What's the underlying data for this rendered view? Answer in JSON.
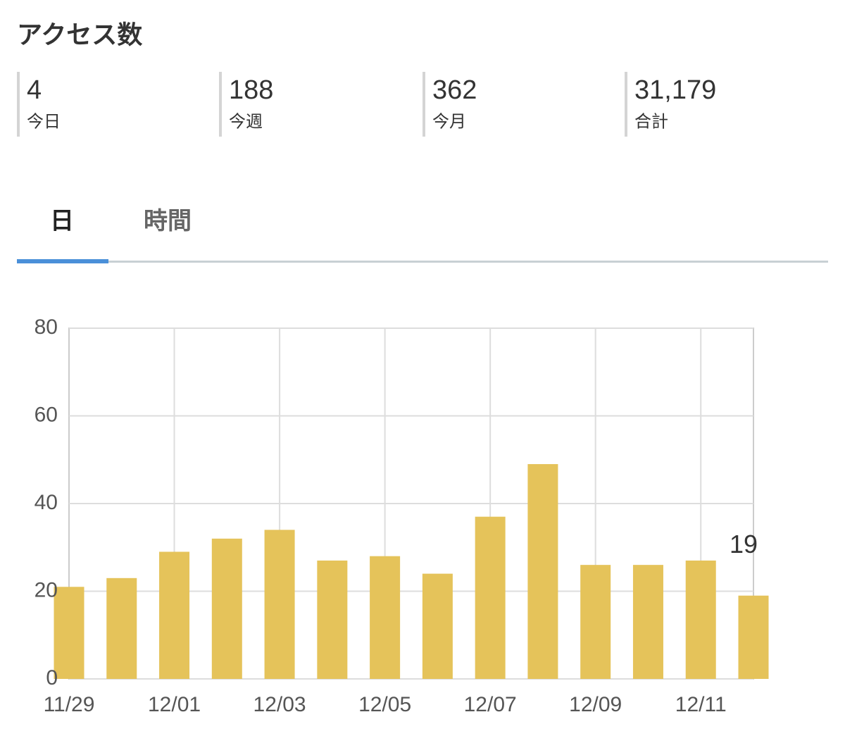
{
  "header": {
    "title": "アクセス数"
  },
  "stats": [
    {
      "value": "4",
      "label": "今日"
    },
    {
      "value": "188",
      "label": "今週"
    },
    {
      "value": "362",
      "label": "今月"
    },
    {
      "value": "31,179",
      "label": "合計"
    }
  ],
  "tabs": [
    "日",
    "時間"
  ],
  "chart_data": {
    "type": "bar",
    "categories": [
      "11/29",
      null,
      "12/01",
      null,
      "12/03",
      null,
      "12/05",
      null,
      "12/07",
      null,
      "12/09",
      null,
      "12/11",
      null
    ],
    "values": [
      21,
      23,
      29,
      32,
      34,
      27,
      28,
      24,
      37,
      49,
      26,
      26,
      27,
      19
    ],
    "value_labels": [
      null,
      null,
      null,
      null,
      null,
      null,
      null,
      null,
      null,
      null,
      null,
      null,
      null,
      "19"
    ],
    "color": "#e5c35a",
    "ylim": [
      0,
      80
    ],
    "yticks": [
      0,
      20,
      40,
      60,
      80
    ],
    "grid": true
  }
}
